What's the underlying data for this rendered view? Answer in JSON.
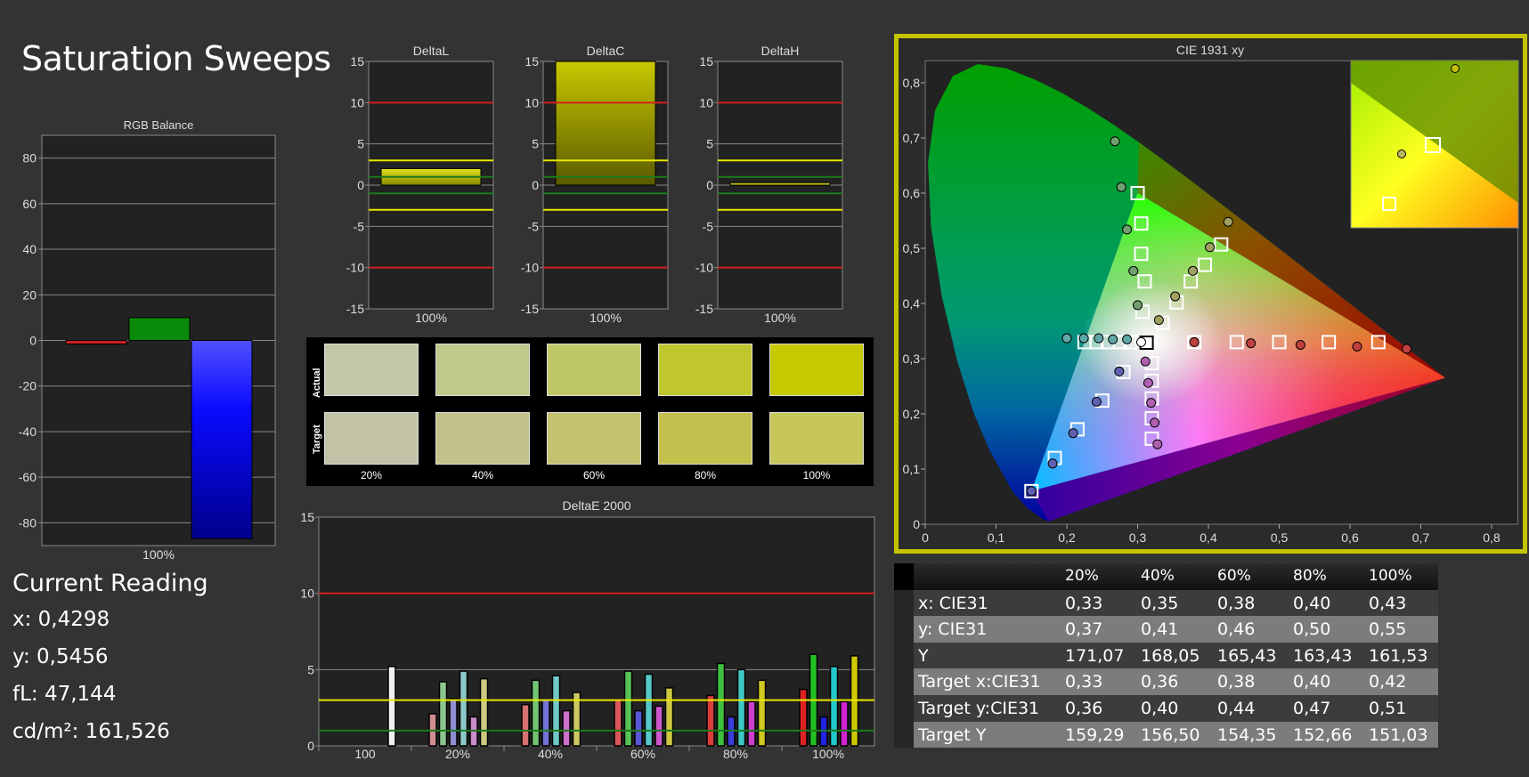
{
  "page": {
    "title": "Saturation Sweeps"
  },
  "current_reading": {
    "title": "Current Reading",
    "x": "x: 0,4298",
    "y": "y: 0,5456",
    "fl": "fL: 47,144",
    "cdm2": "cd/m²: 161,526"
  },
  "swatches": {
    "actual_label": "Actual",
    "target_label": "Target",
    "labels": [
      "20%",
      "40%",
      "60%",
      "80%",
      "100%"
    ],
    "actual_colors": [
      "#c2c9a8",
      "#c0c88a",
      "#bfc866",
      "#c0c62e",
      "#c6c900"
    ],
    "target_colors": [
      "#c2c2a6",
      "#c4c28a",
      "#c4c26e",
      "#c4c04e",
      "#c6c65a"
    ]
  },
  "table": {
    "headers": [
      "",
      "20%",
      "40%",
      "60%",
      "80%",
      "100%"
    ],
    "rows": [
      {
        "label": "x: CIE31",
        "values": [
          "0,33",
          "0,35",
          "0,38",
          "0,40",
          "0,43"
        ]
      },
      {
        "label": "y: CIE31",
        "values": [
          "0,37",
          "0,41",
          "0,46",
          "0,50",
          "0,55"
        ]
      },
      {
        "label": "Y",
        "values": [
          "171,07",
          "168,05",
          "165,43",
          "163,43",
          "161,53"
        ]
      },
      {
        "label": "Target x:CIE31",
        "values": [
          "0,33",
          "0,36",
          "0,38",
          "0,40",
          "0,42"
        ]
      },
      {
        "label": "Target y:CIE31",
        "values": [
          "0,36",
          "0,40",
          "0,44",
          "0,47",
          "0,51"
        ]
      },
      {
        "label": "Target Y",
        "values": [
          "159,29",
          "156,50",
          "154,35",
          "152,66",
          "151,03"
        ]
      }
    ]
  },
  "colors": {
    "accent_frame": "#c3c300",
    "limit_red": "#d02020",
    "limit_yellow": "#e8e800",
    "limit_green": "#1a7a1a"
  },
  "chart_data": [
    {
      "id": "rgb_balance",
      "type": "bar",
      "title": "RGB Balance",
      "categories": [
        "100%"
      ],
      "ylim": [
        -90,
        90
      ],
      "yticks": [
        80,
        60,
        40,
        20,
        0,
        -20,
        -40,
        -60,
        -80
      ],
      "series": [
        {
          "color": "#cc2020",
          "values": [
            -1
          ]
        },
        {
          "color": "#0a8a0a",
          "values": [
            10
          ]
        },
        {
          "color": "#1010ff",
          "values": [
            -87
          ]
        }
      ]
    },
    {
      "id": "deltal",
      "type": "bar",
      "title": "DeltaL",
      "categories": [
        "100%"
      ],
      "values": [
        2.0
      ],
      "ylim": [
        -15,
        15
      ],
      "yticks": [
        15,
        10,
        5,
        0,
        -5,
        -10,
        -15
      ],
      "limits": {
        "red": 10,
        "yellow": 3,
        "green": 1
      }
    },
    {
      "id": "deltac",
      "type": "bar",
      "title": "DeltaC",
      "categories": [
        "100%"
      ],
      "values": [
        15.5
      ],
      "ylim": [
        -15,
        15
      ],
      "yticks": [
        15,
        10,
        5,
        0,
        -5,
        -10,
        -15
      ],
      "limits": {
        "red": 10,
        "yellow": 3,
        "green": 1
      }
    },
    {
      "id": "deltah",
      "type": "bar",
      "title": "DeltaH",
      "categories": [
        "100%"
      ],
      "values": [
        0.3
      ],
      "ylim": [
        -15,
        15
      ],
      "yticks": [
        15,
        10,
        5,
        0,
        -5,
        -10,
        -15
      ],
      "limits": {
        "red": 10,
        "yellow": 3,
        "green": 1
      }
    },
    {
      "id": "deltae",
      "type": "bar",
      "title": "DeltaE 2000",
      "categories": [
        "100",
        "20%",
        "40%",
        "60%",
        "80%",
        "100%"
      ],
      "ylim": [
        0,
        15
      ],
      "yticks": [
        15,
        10,
        5,
        0
      ],
      "limits": {
        "red": 10,
        "yellow": 3,
        "green": 1
      },
      "white": 5.2,
      "series_colors": [
        "#e02020",
        "#20c020",
        "#2020e0",
        "#20c8c8",
        "#d020d0",
        "#d0c800"
      ],
      "series": [
        {
          "values": [
            2.1,
            4.2,
            3.1,
            4.9,
            1.9,
            4.4
          ]
        },
        {
          "values": [
            2.7,
            4.3,
            3.0,
            4.6,
            2.3,
            3.5
          ]
        },
        {
          "values": [
            3.0,
            4.9,
            2.3,
            4.7,
            2.6,
            3.8
          ]
        },
        {
          "values": [
            3.3,
            5.4,
            1.9,
            5.0,
            2.9,
            4.3
          ]
        },
        {
          "values": [
            3.7,
            6.0,
            1.9,
            5.2,
            2.9,
            5.9
          ]
        }
      ]
    },
    {
      "id": "cie",
      "type": "scatter",
      "title": "CIE 1931 xy",
      "xlim": [
        0,
        0.84
      ],
      "ylim": [
        0,
        0.84
      ],
      "xticks": [
        "0",
        "0,1",
        "0,2",
        "0,3",
        "0,4",
        "0,5",
        "0,6",
        "0,7",
        "0,8"
      ],
      "yticks": [
        "0",
        "0,1",
        "0,2",
        "0,3",
        "0,4",
        "0,5",
        "0,6",
        "0,7",
        "0,8"
      ],
      "white_target": [
        0.3127,
        0.329
      ],
      "white_measured": [
        0.305,
        0.33
      ],
      "series": [
        {
          "color": "#c04040",
          "targets": [
            [
              0.38,
              0.33
            ],
            [
              0.44,
              0.33
            ],
            [
              0.5,
              0.33
            ],
            [
              0.57,
              0.33
            ],
            [
              0.64,
              0.33
            ]
          ],
          "measured": [
            [
              0.38,
              0.33
            ],
            [
              0.46,
              0.328
            ],
            [
              0.53,
              0.325
            ],
            [
              0.61,
              0.322
            ],
            [
              0.68,
              0.318
            ]
          ]
        },
        {
          "color": "#70a070",
          "targets": [
            [
              0.307,
              0.385
            ],
            [
              0.31,
              0.44
            ],
            [
              0.305,
              0.49
            ],
            [
              0.305,
              0.545
            ],
            [
              0.3,
              0.6
            ]
          ],
          "measured": [
            [
              0.3,
              0.397
            ],
            [
              0.294,
              0.459
            ],
            [
              0.285,
              0.534
            ],
            [
              0.277,
              0.611
            ],
            [
              0.268,
              0.694
            ]
          ]
        },
        {
          "color": "#6060b0",
          "targets": [
            [
              0.28,
              0.276
            ],
            [
              0.25,
              0.224
            ],
            [
              0.215,
              0.172
            ],
            [
              0.183,
              0.12
            ],
            [
              0.15,
              0.06
            ]
          ],
          "measured": [
            [
              0.274,
              0.277
            ],
            [
              0.242,
              0.222
            ],
            [
              0.209,
              0.165
            ],
            [
              0.18,
              0.11
            ],
            [
              0.15,
              0.06
            ]
          ]
        },
        {
          "color": "#60a8a8",
          "targets": [
            [
              0.29,
              0.33
            ],
            [
              0.275,
              0.33
            ],
            [
              0.258,
              0.33
            ],
            [
              0.242,
              0.33
            ],
            [
              0.225,
              0.33
            ]
          ],
          "measured": [
            [
              0.285,
              0.335
            ],
            [
              0.265,
              0.335
            ],
            [
              0.245,
              0.337
            ],
            [
              0.224,
              0.337
            ],
            [
              0.2,
              0.337
            ]
          ]
        },
        {
          "color": "#b060b0",
          "targets": [
            [
              0.32,
              0.292
            ],
            [
              0.32,
              0.26
            ],
            [
              0.32,
              0.228
            ],
            [
              0.32,
              0.192
            ],
            [
              0.32,
              0.155
            ]
          ],
          "measured": [
            [
              0.311,
              0.295
            ],
            [
              0.315,
              0.256
            ],
            [
              0.319,
              0.22
            ],
            [
              0.324,
              0.184
            ],
            [
              0.328,
              0.145
            ]
          ]
        },
        {
          "color": "#a0a060",
          "targets": [
            [
              0.335,
              0.365
            ],
            [
              0.355,
              0.402
            ],
            [
              0.375,
              0.44
            ],
            [
              0.395,
              0.47
            ],
            [
              0.418,
              0.507
            ]
          ],
          "measured": [
            [
              0.33,
              0.37
            ],
            [
              0.353,
              0.413
            ],
            [
              0.378,
              0.459
            ],
            [
              0.402,
              0.502
            ],
            [
              0.428,
              0.548
            ]
          ]
        }
      ]
    }
  ]
}
